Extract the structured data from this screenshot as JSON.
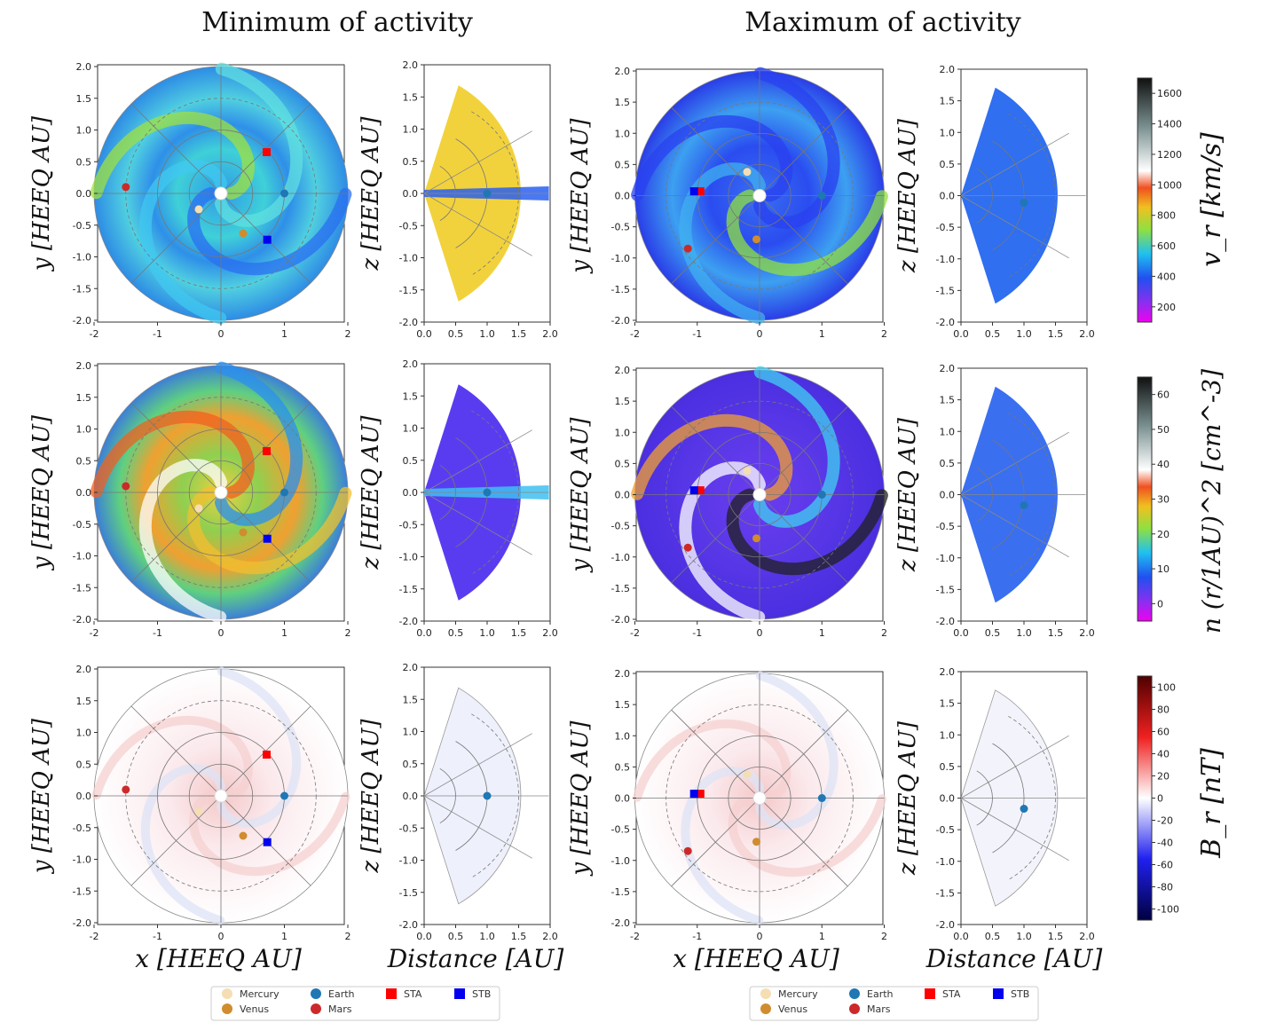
{
  "headers": {
    "left": "Minimum of activity",
    "right": "Maximum of activity"
  },
  "axes": {
    "y_polar": "y [HEEQ AU]",
    "z_merid": "z [HEEQ AU]",
    "x_polar": "x [HEEQ AU]",
    "x_merid": "Distance [AU]"
  },
  "colorbars": {
    "vr": {
      "label": "v_r [km/s]",
      "ticks": [
        "1600",
        "1400",
        "1200",
        "1000",
        "800",
        "600",
        "400",
        "200"
      ]
    },
    "n": {
      "label": "n (r/1AU)^2 [cm^-3]",
      "ticks": [
        "60",
        "50",
        "40",
        "30",
        "20",
        "10",
        "0"
      ]
    },
    "br": {
      "label": "B_r [nT]",
      "ticks": [
        "100",
        "80",
        "60",
        "40",
        "20",
        "0",
        "-20",
        "-40",
        "-60",
        "-80",
        "-100"
      ]
    }
  },
  "tick_labels": {
    "polar_x": [
      "-2",
      "-1",
      "0",
      "1",
      "2"
    ],
    "polar_y": [
      "2.0",
      "1.5",
      "1.0",
      "0.5",
      "0.0",
      "-0.5",
      "-1.0",
      "-1.5",
      "-2.0"
    ],
    "merid_x": [
      "0.0",
      "0.5",
      "1.0",
      "1.5",
      "2.0"
    ],
    "merid_y": [
      "2.0",
      "1.5",
      "1.0",
      "0.5",
      "0.0",
      "-0.5",
      "-1.0",
      "-1.5",
      "-2.0"
    ]
  },
  "legend": {
    "mercury": "Mercury",
    "venus": "Venus",
    "earth": "Earth",
    "mars": "Mars",
    "sta": "STA",
    "stb": "STB"
  },
  "colors": {
    "mercury": "#f5deb3",
    "venus": "#d08c2e",
    "earth": "#1f77b4",
    "mars": "#cc2a2a",
    "sta": "#ff0000",
    "stb": "#0000ee"
  },
  "chart_data": {
    "type": "heatmap",
    "polar_xlim": [
      -2,
      2
    ],
    "polar_ylim": [
      -2,
      2
    ],
    "merid_xlim": [
      0,
      2
    ],
    "merid_ylim": [
      -2,
      2
    ],
    "markers": {
      "minimum": {
        "mercury": [
          -0.35,
          -0.25
        ],
        "venus": [
          0.35,
          -0.63
        ],
        "earth": [
          1.0,
          0.0
        ],
        "mars": [
          -1.5,
          0.1
        ],
        "sta": [
          0.72,
          0.65
        ],
        "stb": [
          0.73,
          -0.73
        ]
      },
      "maximum": {
        "mercury": [
          -0.2,
          0.38
        ],
        "venus": [
          -0.05,
          -0.7
        ],
        "earth": [
          1.0,
          0.0
        ],
        "mars": [
          -1.15,
          -0.85
        ],
        "sta": [
          -0.95,
          0.07
        ],
        "stb": [
          -1.05,
          0.07
        ]
      }
    }
  }
}
